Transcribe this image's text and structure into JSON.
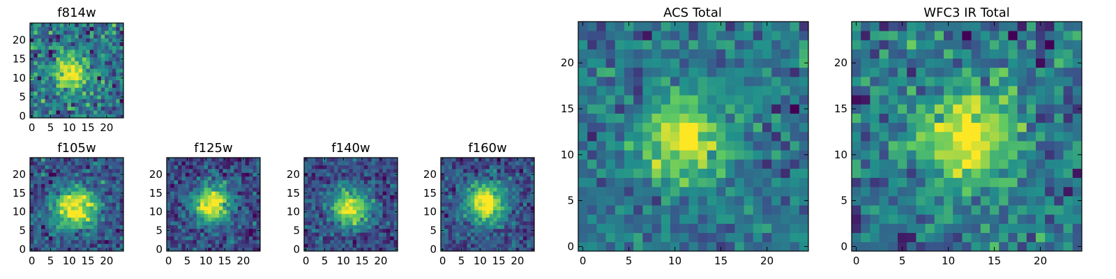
{
  "figure": {
    "colormap": "viridis",
    "colors": [
      "#440154",
      "#3b528b",
      "#21918c",
      "#5ec962",
      "#fde725"
    ]
  },
  "chart_data": [
    {
      "type": "heatmap",
      "title": "f814w",
      "image_size": 25,
      "xlim": [
        0,
        24
      ],
      "ylim": [
        0,
        24
      ],
      "xticks": [
        0,
        5,
        10,
        15,
        20
      ],
      "yticks": [
        0,
        5,
        10,
        15,
        20
      ],
      "source_center": [
        10.5,
        11.5
      ],
      "source_radius": 3.0,
      "noise": 0.95,
      "seed": 11
    },
    {
      "type": "heatmap",
      "title": "f105w",
      "image_size": 25,
      "xlim": [
        0,
        24
      ],
      "ylim": [
        0,
        24
      ],
      "xticks": [
        0,
        5,
        10,
        15,
        20
      ],
      "yticks": [
        0,
        5,
        10,
        15,
        20
      ],
      "source_center": [
        11.5,
        11.0
      ],
      "source_radius": 3.8,
      "noise": 0.6,
      "seed": 21
    },
    {
      "type": "heatmap",
      "title": "f125w",
      "image_size": 25,
      "xlim": [
        0,
        24
      ],
      "ylim": [
        0,
        24
      ],
      "xticks": [
        0,
        5,
        10,
        15,
        20
      ],
      "yticks": [
        0,
        5,
        10,
        15,
        20
      ],
      "source_center": [
        11.5,
        12.0
      ],
      "source_radius": 3.4,
      "noise": 0.6,
      "seed": 31
    },
    {
      "type": "heatmap",
      "title": "f140w",
      "image_size": 25,
      "xlim": [
        0,
        24
      ],
      "ylim": [
        0,
        24
      ],
      "xticks": [
        0,
        5,
        10,
        15,
        20
      ],
      "yticks": [
        0,
        5,
        10,
        15,
        20
      ],
      "source_center": [
        12.0,
        11.0
      ],
      "source_radius": 3.4,
      "noise": 0.6,
      "seed": 41
    },
    {
      "type": "heatmap",
      "title": "f160w",
      "image_size": 25,
      "xlim": [
        0,
        24
      ],
      "ylim": [
        0,
        24
      ],
      "xticks": [
        0,
        5,
        10,
        15,
        20
      ],
      "yticks": [
        0,
        5,
        10,
        15,
        20
      ],
      "source_center": [
        11.5,
        12.5
      ],
      "source_radius": 3.6,
      "noise": 0.55,
      "seed": 51
    },
    {
      "type": "heatmap",
      "title": "ACS Total",
      "image_size": 25,
      "xlim": [
        0,
        24
      ],
      "ylim": [
        0,
        24
      ],
      "xticks": [
        0,
        5,
        10,
        15,
        20
      ],
      "yticks": [
        0,
        5,
        10,
        15,
        20
      ],
      "source_center": [
        11.0,
        11.5
      ],
      "source_radius": 3.2,
      "noise": 0.8,
      "seed": 61
    },
    {
      "type": "heatmap",
      "title": "WFC3 IR Total",
      "image_size": 25,
      "xlim": [
        0,
        24
      ],
      "ylim": [
        0,
        24
      ],
      "xticks": [
        0,
        5,
        10,
        15,
        20
      ],
      "yticks": [
        0,
        5,
        10,
        15,
        20
      ],
      "source_center": [
        12.0,
        12.0
      ],
      "source_radius": 3.6,
      "noise": 0.9,
      "seed": 71
    }
  ]
}
